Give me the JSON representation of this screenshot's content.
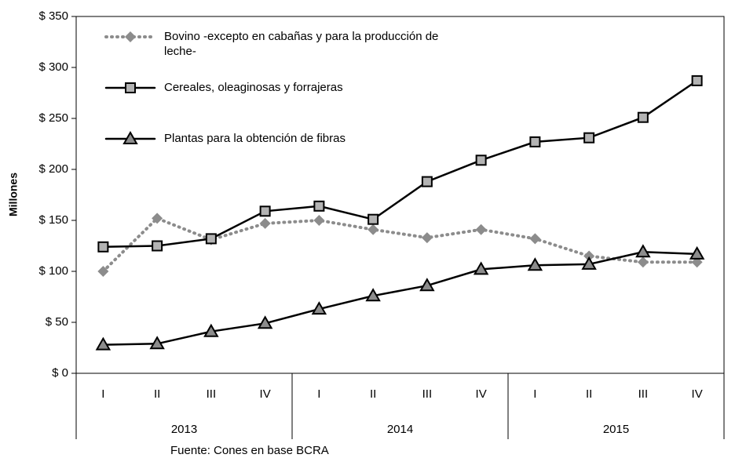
{
  "chart_data": {
    "type": "line",
    "y_label": "Millones",
    "source": "Fuente: Cones en base BCRA",
    "categories": [
      "I",
      "II",
      "III",
      "IV",
      "I",
      "II",
      "III",
      "IV",
      "I",
      "II",
      "III",
      "IV"
    ],
    "groups": [
      "2013",
      "2014",
      "2015"
    ],
    "series": [
      {
        "name": "Bovino -excepto en cabañas y para la producción de leche-",
        "color": "#8c8c8c",
        "marker": "diamond",
        "dash": true,
        "values": [
          100,
          152,
          131,
          147,
          150,
          141,
          133,
          141,
          132,
          115,
          109,
          109
        ]
      },
      {
        "name": "Cereales, oleaginosas y forrajeras",
        "color": "#000000",
        "marker": "square",
        "dash": false,
        "values": [
          124,
          125,
          132,
          159,
          164,
          151,
          188,
          209,
          227,
          231,
          251,
          287
        ]
      },
      {
        "name": "Plantas para la obtención de fibras",
        "color": "#000000",
        "marker": "triangle",
        "dash": false,
        "values": [
          28,
          29,
          41,
          49,
          63,
          76,
          86,
          102,
          106,
          107,
          119,
          117
        ]
      }
    ],
    "ylim": [
      0,
      350
    ],
    "yticks": [
      {
        "value": 0,
        "label": "$ 0"
      },
      {
        "value": 50,
        "label": "$ 50"
      },
      {
        "value": 100,
        "label": "$ 100"
      },
      {
        "value": 150,
        "label": "$ 150"
      },
      {
        "value": 200,
        "label": "$ 200"
      },
      {
        "value": 250,
        "label": "$ 250"
      },
      {
        "value": 300,
        "label": "$ 300"
      },
      {
        "value": 350,
        "label": "$ 350"
      }
    ],
    "grid": false
  }
}
